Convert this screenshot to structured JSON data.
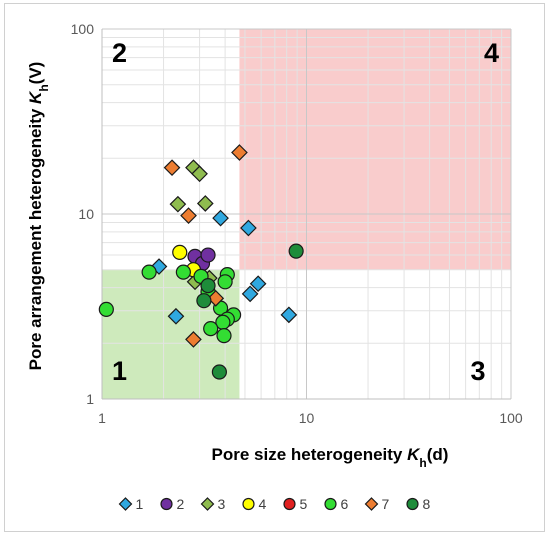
{
  "chart_data": {
    "type": "scatter",
    "x_scale": "log",
    "y_scale": "log",
    "xlim": [
      1,
      100
    ],
    "ylim": [
      1,
      100
    ],
    "grid": true,
    "xlabel": {
      "main": "Pore size heterogeneity ",
      "italic": "K",
      "sub": "h",
      "tail": "(d)"
    },
    "ylabel": {
      "main": "Pore arrangement heterogeneity ",
      "italic": "K",
      "sub": "h",
      "tail": "(V)"
    },
    "x_ticks": [
      "1",
      "10",
      "100"
    ],
    "y_ticks": [
      "1",
      "10",
      "100"
    ],
    "legend_position": "bottom",
    "regions": [
      {
        "label": "1",
        "x": [
          1,
          4.7
        ],
        "y": [
          1,
          5
        ],
        "color": "#c5e6b0"
      },
      {
        "label": "4",
        "x": [
          4.7,
          100
        ],
        "y": [
          5,
          100
        ],
        "color": "#f8c3c3"
      }
    ],
    "quadrant_labels": [
      {
        "text": "1",
        "corner": "bottom-left"
      },
      {
        "text": "2",
        "corner": "top-left"
      },
      {
        "text": "3",
        "corner": "bottom-right"
      },
      {
        "text": "4",
        "corner": "top-right"
      }
    ],
    "series": [
      {
        "name": "1",
        "marker": "diamond",
        "color": "#2fa8e0",
        "points": [
          [
            1.9,
            5.2
          ],
          [
            2.3,
            2.8
          ],
          [
            3.8,
            9.5
          ],
          [
            5.2,
            8.4
          ],
          [
            5.3,
            3.7
          ],
          [
            5.8,
            4.2
          ],
          [
            8.2,
            2.85
          ]
        ]
      },
      {
        "name": "2",
        "marker": "circle",
        "color": "#7030a0",
        "points": [
          [
            2.85,
            5.9
          ],
          [
            3.1,
            5.4
          ],
          [
            3.3,
            6.0
          ]
        ]
      },
      {
        "name": "3",
        "marker": "diamond",
        "color": "#8fbc4f",
        "points": [
          [
            2.8,
            17.8
          ],
          [
            3.0,
            16.5
          ],
          [
            2.35,
            11.3
          ],
          [
            3.2,
            11.4
          ],
          [
            2.85,
            4.3
          ],
          [
            3.35,
            4.5
          ]
        ]
      },
      {
        "name": "4",
        "marker": "circle",
        "color": "#ffff00",
        "points": [
          [
            2.4,
            6.2
          ],
          [
            2.8,
            5.0
          ]
        ]
      },
      {
        "name": "5",
        "marker": "circle",
        "color": "#e02020",
        "points": []
      },
      {
        "name": "6",
        "marker": "circle",
        "color": "#33dd33",
        "points": [
          [
            1.05,
            3.05
          ],
          [
            1.7,
            4.85
          ],
          [
            2.5,
            4.85
          ],
          [
            3.05,
            4.6
          ],
          [
            3.3,
            3.8
          ],
          [
            4.1,
            4.7
          ],
          [
            4.0,
            4.3
          ],
          [
            3.8,
            3.1
          ],
          [
            4.4,
            2.85
          ],
          [
            4.1,
            2.7
          ],
          [
            3.9,
            2.6
          ],
          [
            3.4,
            2.4
          ],
          [
            3.95,
            2.2
          ]
        ]
      },
      {
        "name": "7",
        "marker": "diamond",
        "color": "#ed7d31",
        "points": [
          [
            2.2,
            17.8
          ],
          [
            2.65,
            9.8
          ],
          [
            4.7,
            21.5
          ],
          [
            3.6,
            3.5
          ],
          [
            2.8,
            2.1
          ]
        ]
      },
      {
        "name": "8",
        "marker": "circle",
        "color": "#1e8c3a",
        "points": [
          [
            8.9,
            6.3
          ],
          [
            3.3,
            4.1
          ],
          [
            3.15,
            3.4
          ],
          [
            3.75,
            1.4
          ]
        ]
      }
    ]
  }
}
